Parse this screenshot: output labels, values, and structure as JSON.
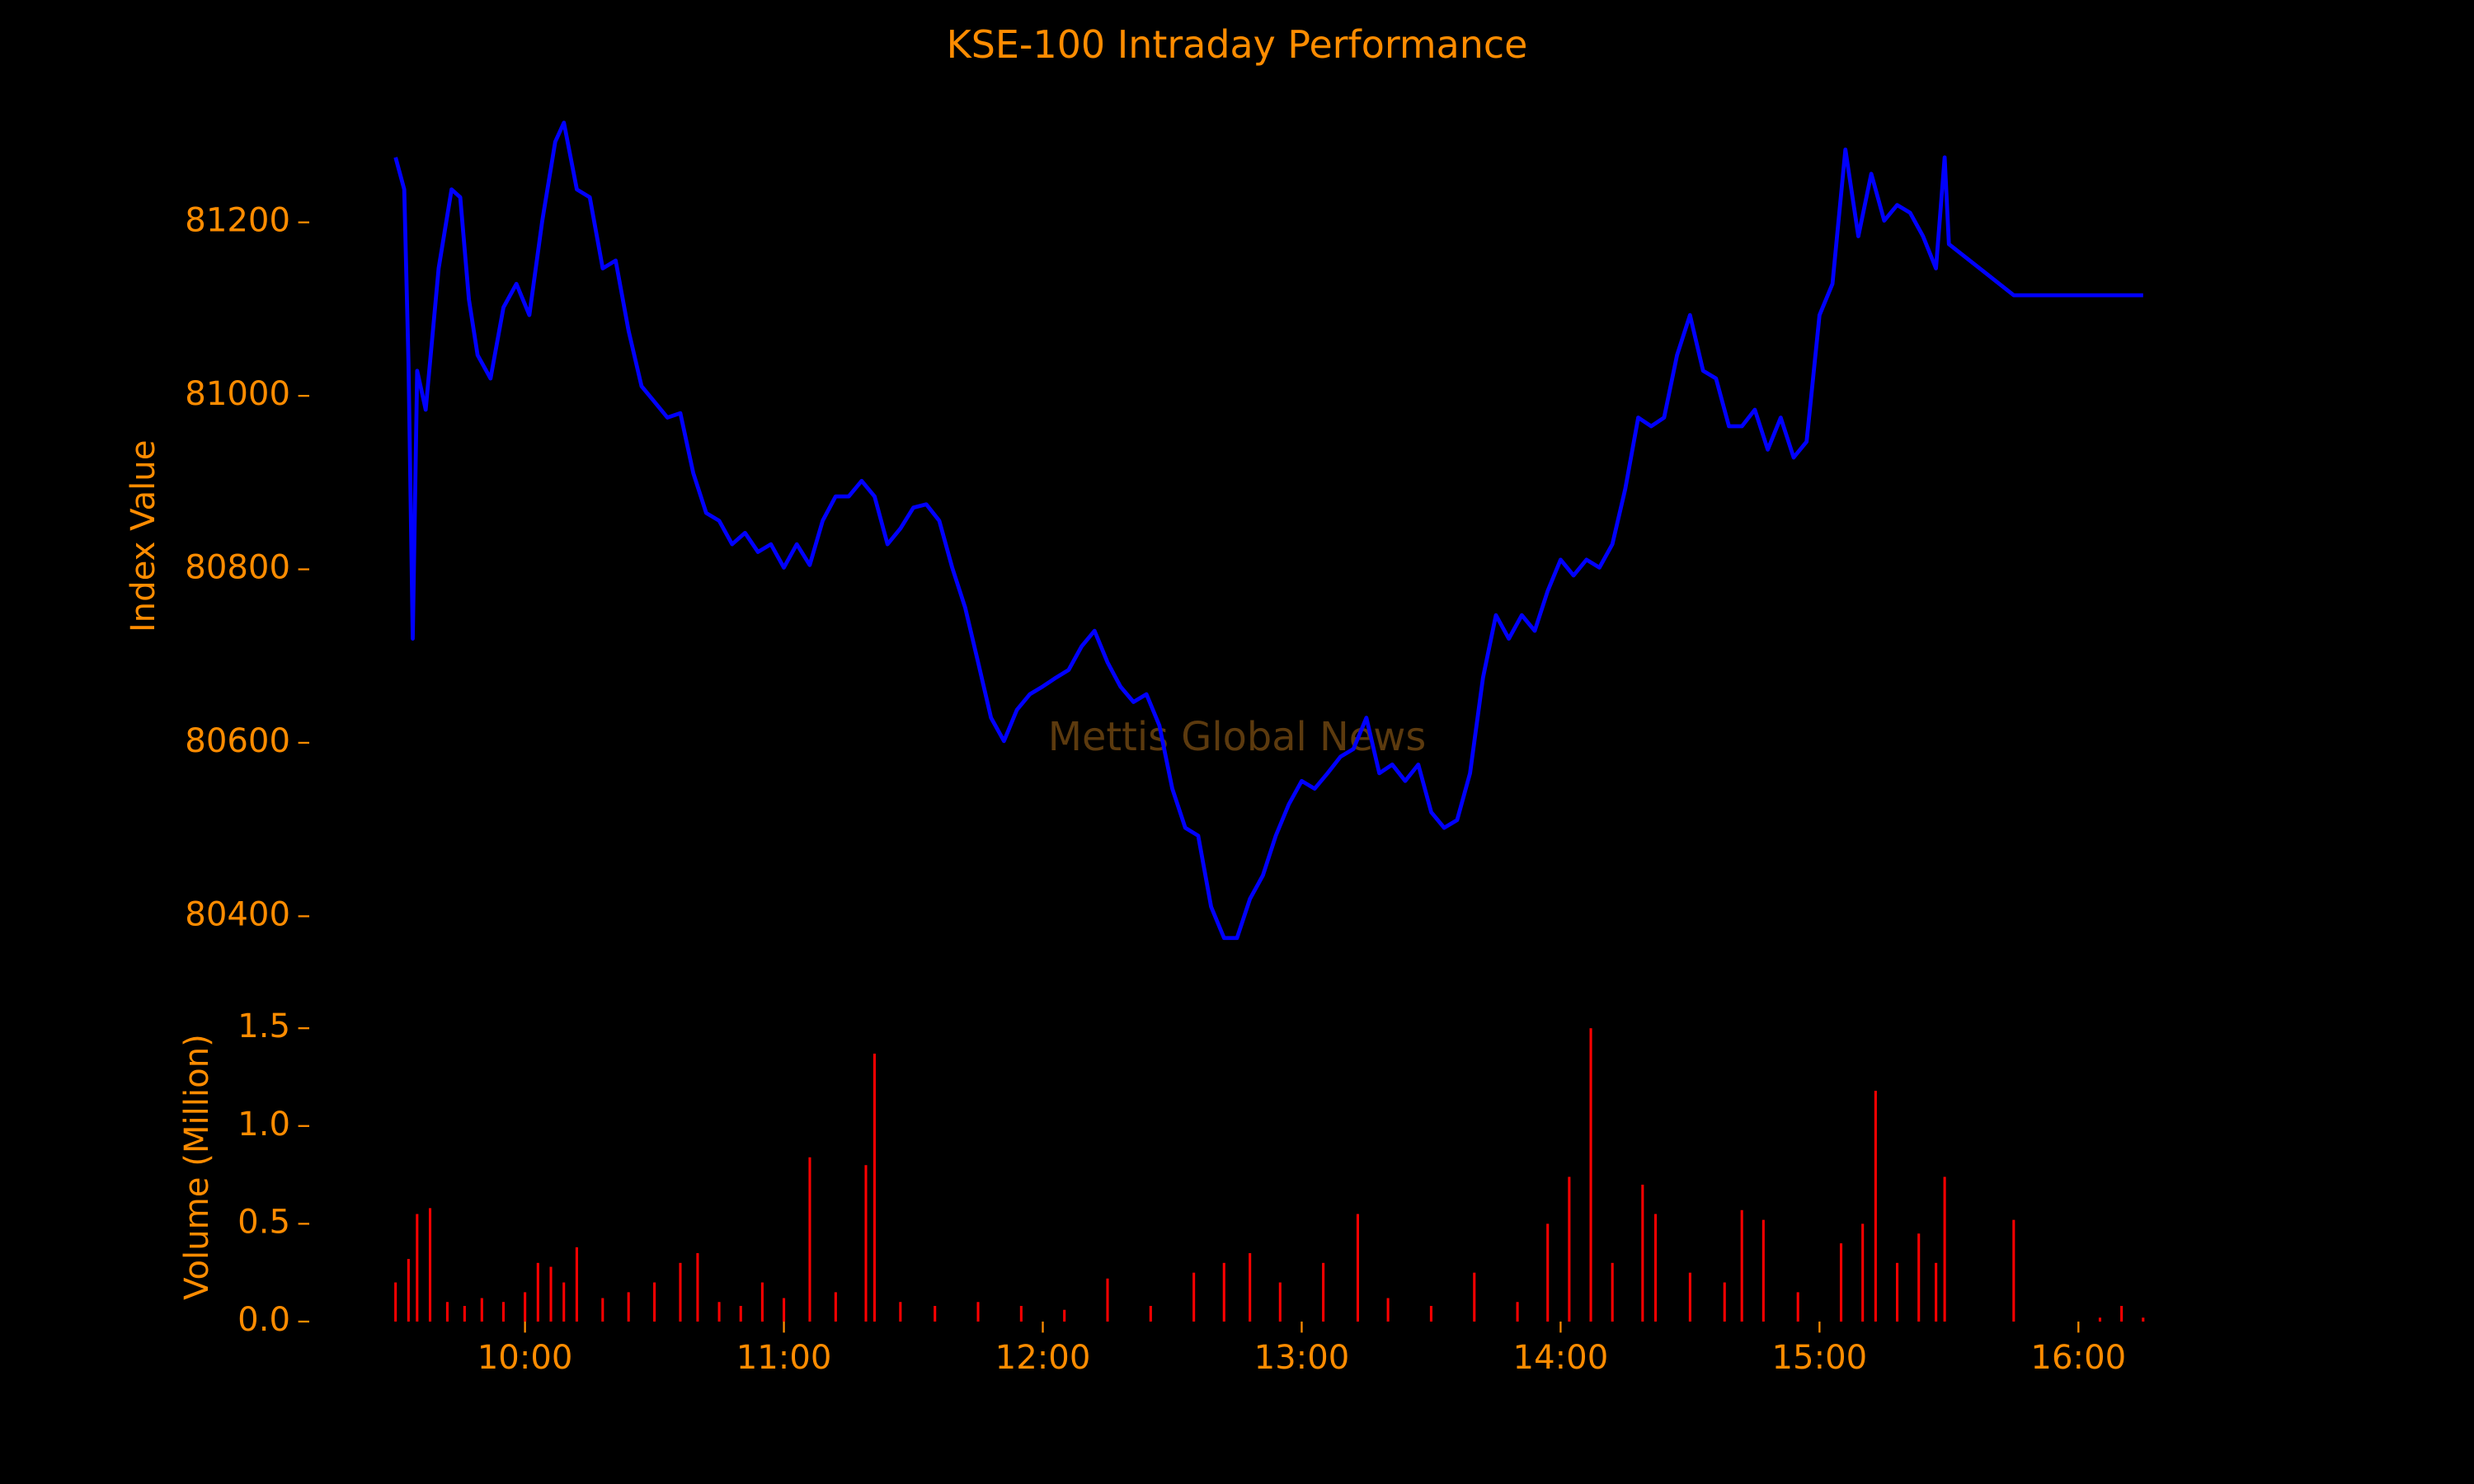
{
  "chart_data": [
    {
      "type": "line",
      "title": "KSE-100 Intraday Performance",
      "ylabel": "Index Value",
      "watermark": "Mettis Global News",
      "color": "#0000ff",
      "xlim": [
        "09:10",
        "16:35"
      ],
      "ylim": [
        80330,
        81330
      ],
      "yticks": [
        80400,
        80600,
        80800,
        81000,
        81200
      ],
      "x": [
        "09:30",
        "09:32",
        "09:33",
        "09:34",
        "09:35",
        "09:37",
        "09:40",
        "09:43",
        "09:45",
        "09:47",
        "09:49",
        "09:52",
        "09:55",
        "09:58",
        "10:01",
        "10:04",
        "10:07",
        "10:09",
        "10:12",
        "10:15",
        "10:18",
        "10:21",
        "10:24",
        "10:27",
        "10:30",
        "10:33",
        "10:36",
        "10:39",
        "10:42",
        "10:45",
        "10:48",
        "10:51",
        "10:54",
        "10:57",
        "11:00",
        "11:03",
        "11:06",
        "11:09",
        "11:12",
        "11:15",
        "11:18",
        "11:21",
        "11:24",
        "11:27",
        "11:30",
        "11:33",
        "11:36",
        "11:39",
        "11:42",
        "11:45",
        "11:48",
        "11:51",
        "11:54",
        "11:57",
        "12:00",
        "12:03",
        "12:06",
        "12:09",
        "12:12",
        "12:15",
        "12:18",
        "12:21",
        "12:24",
        "12:27",
        "12:30",
        "12:33",
        "12:36",
        "12:39",
        "12:42",
        "12:45",
        "12:48",
        "12:51",
        "12:54",
        "12:57",
        "13:00",
        "13:03",
        "13:06",
        "13:09",
        "13:12",
        "13:15",
        "13:18",
        "13:21",
        "13:24",
        "13:27",
        "13:30",
        "13:33",
        "13:36",
        "13:39",
        "13:42",
        "13:45",
        "13:48",
        "13:51",
        "13:54",
        "13:57",
        "14:00",
        "14:03",
        "14:06",
        "14:09",
        "14:12",
        "14:15",
        "14:18",
        "14:21",
        "14:24",
        "14:27",
        "14:30",
        "14:33",
        "14:36",
        "14:39",
        "14:42",
        "14:45",
        "14:48",
        "14:51",
        "14:54",
        "14:57",
        "15:00",
        "15:03",
        "15:06",
        "15:09",
        "15:12",
        "15:15",
        "15:18",
        "15:21",
        "15:24",
        "15:27",
        "15:29",
        "15:30",
        "15:45",
        "16:15"
      ],
      "values": [
        81275,
        81238,
        81038,
        80720,
        81029,
        80984,
        81147,
        81238,
        81229,
        81111,
        81047,
        81020,
        81102,
        81129,
        81093,
        81202,
        81293,
        81315,
        81238,
        81229,
        81147,
        81156,
        81075,
        81011,
        80993,
        80975,
        80980,
        80911,
        80865,
        80856,
        80829,
        80842,
        80820,
        80829,
        80802,
        80829,
        80805,
        80856,
        80884,
        80884,
        80902,
        80884,
        80829,
        80847,
        80871,
        80875,
        80856,
        80802,
        80756,
        80693,
        80629,
        80602,
        80638,
        80656,
        80665,
        80675,
        80684,
        80711,
        80729,
        80693,
        80665,
        80647,
        80656,
        80620,
        80547,
        80502,
        80493,
        80411,
        80375,
        80375,
        80420,
        80447,
        80493,
        80529,
        80556,
        80547,
        80565,
        80584,
        80593,
        80629,
        80565,
        80575,
        80556,
        80575,
        80520,
        80502,
        80511,
        80565,
        80675,
        80747,
        80720,
        80747,
        80729,
        80775,
        80811,
        80793,
        80811,
        80802,
        80829,
        80893,
        80975,
        80965,
        80975,
        81047,
        81093,
        81029,
        81020,
        80965,
        80965,
        80984,
        80938,
        80975,
        80929,
        80947,
        81093,
        81129,
        81284,
        81184,
        81256,
        81202,
        81220,
        81211,
        81184,
        81147,
        81275,
        81175,
        81116,
        81116
      ]
    },
    {
      "type": "bar",
      "ylabel": "Volume (Million)",
      "color": "#ff0000",
      "xlim": [
        "09:10",
        "16:35"
      ],
      "xticks": [
        "10:00",
        "11:00",
        "12:00",
        "13:00",
        "14:00",
        "15:00",
        "16:00"
      ],
      "ylim": [
        0,
        1.55
      ],
      "yticks": [
        {
          "value": 0,
          "label": "0.0"
        },
        0.5,
        {
          "value": 1,
          "label": "1.0"
        },
        1.5
      ],
      "x": [
        "09:30",
        "09:33",
        "09:35",
        "09:38",
        "09:42",
        "09:46",
        "09:50",
        "09:55",
        "10:00",
        "10:03",
        "10:06",
        "10:09",
        "10:12",
        "10:18",
        "10:24",
        "10:30",
        "10:36",
        "10:40",
        "10:45",
        "10:50",
        "10:55",
        "11:00",
        "11:06",
        "11:12",
        "11:19",
        "11:21",
        "11:27",
        "11:35",
        "11:45",
        "11:55",
        "12:05",
        "12:15",
        "12:25",
        "12:35",
        "12:42",
        "12:48",
        "12:55",
        "13:05",
        "13:13",
        "13:20",
        "13:30",
        "13:40",
        "13:50",
        "13:57",
        "14:02",
        "14:07",
        "14:12",
        "14:19",
        "14:22",
        "14:30",
        "14:38",
        "14:42",
        "14:47",
        "14:55",
        "15:05",
        "15:10",
        "15:13",
        "15:18",
        "15:23",
        "15:27",
        "15:29",
        "15:45",
        "16:05",
        "16:10",
        "16:15"
      ],
      "values": [
        0.2,
        0.32,
        0.55,
        0.58,
        0.1,
        0.08,
        0.12,
        0.1,
        0.15,
        0.3,
        0.28,
        0.2,
        0.38,
        0.12,
        0.15,
        0.2,
        0.3,
        0.35,
        0.1,
        0.08,
        0.2,
        0.12,
        0.84,
        0.15,
        0.8,
        1.37,
        0.1,
        0.08,
        0.1,
        0.08,
        0.06,
        0.22,
        0.08,
        0.25,
        0.3,
        0.35,
        0.2,
        0.3,
        0.55,
        0.12,
        0.08,
        0.25,
        0.1,
        0.5,
        0.74,
        1.5,
        0.3,
        0.7,
        0.55,
        0.25,
        0.2,
        0.57,
        0.52,
        0.15,
        0.4,
        0.5,
        1.18,
        0.3,
        0.45,
        0.3,
        0.74,
        0.52,
        0.02,
        0.08,
        0.02
      ]
    }
  ]
}
